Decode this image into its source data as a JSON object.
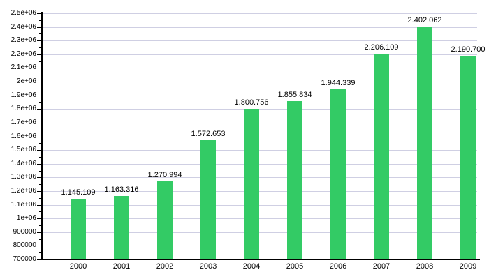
{
  "chart_data": {
    "type": "bar",
    "title": "",
    "xlabel": "",
    "ylabel": "",
    "categories": [
      "2000",
      "2001",
      "2002",
      "2003",
      "2004",
      "2005",
      "2006",
      "2007",
      "2008",
      "2009"
    ],
    "values": [
      1145109,
      1163316,
      1270994,
      1572653,
      1800756,
      1855834,
      1944339,
      2206109,
      2402062,
      2190700
    ],
    "value_labels": [
      "1.145.109",
      "1.163.316",
      "1.270.994",
      "1.572.653",
      "1.800.756",
      "1.855.834",
      "1.944.339",
      "2.206.109",
      "2.402.062",
      "2.190.700"
    ],
    "ylim": [
      700000,
      2500000
    ],
    "y_major_step": 100000,
    "y_minor_step": 50000,
    "y_tick_labels": [
      "700000",
      "800000",
      "900000",
      "1e+06",
      "1.1e+06",
      "1.2e+06",
      "1.3e+06",
      "1.4e+06",
      "1.5e+06",
      "1.6e+06",
      "1.7e+06",
      "1.8e+06",
      "1.9e+06",
      "2e+06",
      "2.1e+06",
      "2.2e+06",
      "2.3e+06",
      "2.4e+06",
      "2.5e+06"
    ],
    "grid": true,
    "legend_position": "none",
    "colors": {
      "bar": "#33cb65",
      "grid": "#cfcfe3",
      "axis": "#000000",
      "text": "#000000",
      "background": "#ffffff"
    }
  }
}
